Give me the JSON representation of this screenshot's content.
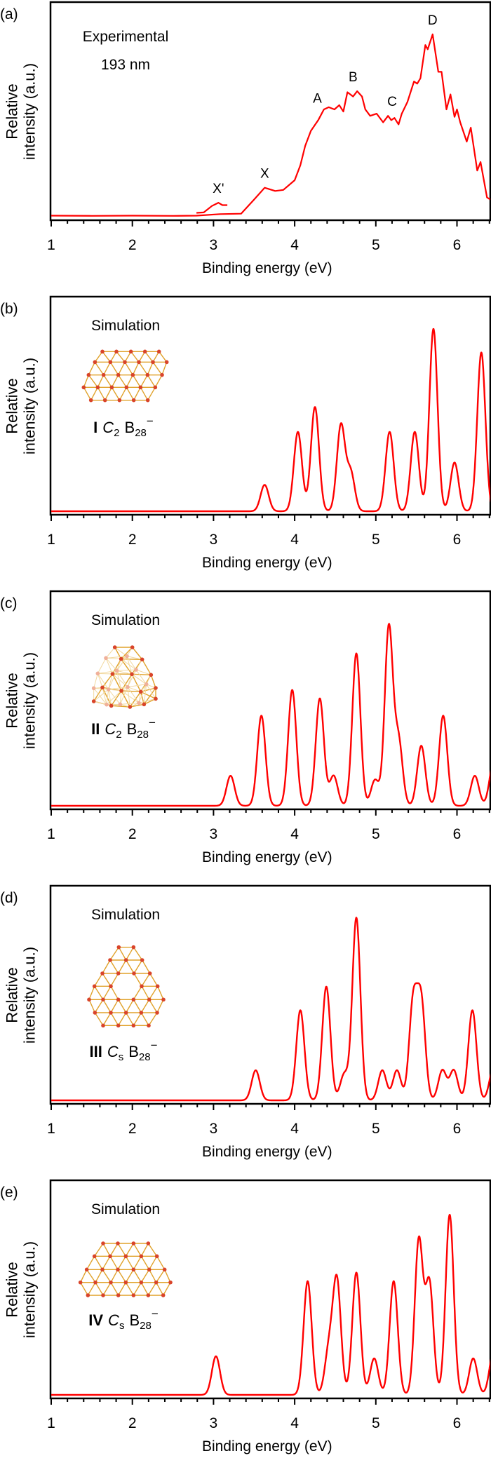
{
  "chart_data": [
    {
      "type": "line",
      "panel_letter": "(a)",
      "caption_lines": [
        "Experimental",
        "193 nm"
      ],
      "xlabel": "Binding energy (eV)",
      "ylabel_lines": [
        "Relative",
        "intensity (a.u.)"
      ],
      "xlim": [
        1,
        6.41
      ],
      "xticks": [
        1,
        2,
        3,
        4,
        5,
        6
      ],
      "yticks": [],
      "color": "#ff0000",
      "series": [
        {
          "x": [
            1.0,
            1.5,
            2.0,
            2.5,
            2.79,
            3.08,
            3.34,
            3.5,
            3.63,
            3.76,
            3.86,
            4.0,
            4.07,
            4.13,
            4.2,
            4.29,
            4.36,
            4.42,
            4.49,
            4.55,
            4.6,
            4.65,
            4.72,
            4.77,
            4.83,
            4.87,
            4.93,
            5.01,
            5.09,
            5.15,
            5.19,
            5.23,
            5.28,
            5.32,
            5.39,
            5.47,
            5.51,
            5.55,
            5.61,
            5.64,
            5.7,
            5.77,
            5.81,
            5.87,
            5.92,
            5.97,
            6.0,
            6.04,
            6.12,
            6.17,
            6.25,
            6.29,
            6.37,
            6.41
          ],
          "y": [
            0.005,
            0.004,
            0.005,
            0.004,
            0.005,
            0.012,
            0.014,
            0.08,
            0.135,
            0.12,
            0.125,
            0.17,
            0.24,
            0.33,
            0.4,
            0.45,
            0.5,
            0.51,
            0.5,
            0.52,
            0.49,
            0.58,
            0.56,
            0.585,
            0.56,
            0.5,
            0.47,
            0.48,
            0.44,
            0.47,
            0.45,
            0.46,
            0.43,
            0.48,
            0.535,
            0.63,
            0.62,
            0.645,
            0.8,
            0.78,
            0.85,
            0.675,
            0.675,
            0.5,
            0.57,
            0.465,
            0.5,
            0.44,
            0.35,
            0.415,
            0.215,
            0.255,
            0.09,
            0.08
          ]
        },
        {
          "x": [
            2.79,
            2.88,
            2.98,
            3.06,
            3.11,
            3.17
          ],
          "y": [
            0.018,
            0.02,
            0.05,
            0.065,
            0.054,
            0.054
          ]
        }
      ],
      "peak_labels": [
        {
          "text": "X'",
          "at": 3.06
        },
        {
          "text": "X",
          "at": 3.63
        },
        {
          "text": "A",
          "at": 4.28
        },
        {
          "text": "B",
          "at": 4.72
        },
        {
          "text": "C",
          "at": 5.2
        },
        {
          "text": "D",
          "at": 5.7
        }
      ]
    },
    {
      "type": "line",
      "panel_letter": "(b)",
      "inset_title": "Simulation",
      "isomer": {
        "numeral": "I",
        "point_group": "C",
        "point_group_sub": "2",
        "formula": "B",
        "formula_sub": "28",
        "charge": "−"
      },
      "xlabel": "Binding energy (eV)",
      "ylabel_lines": [
        "Relative",
        "intensity (a.u.)"
      ],
      "xlim": [
        1,
        6.41
      ],
      "xticks": [
        1,
        2,
        3,
        4,
        5,
        6
      ],
      "color": "#ff0000",
      "peaks": {
        "x": [
          3.63,
          4.04,
          4.25,
          4.57,
          4.69,
          5.17,
          5.48,
          5.71,
          5.97,
          6.3
        ],
        "y": [
          0.123,
          0.37,
          0.486,
          0.4,
          0.18,
          0.37,
          0.37,
          0.85,
          0.227,
          0.74
        ]
      }
    },
    {
      "type": "line",
      "panel_letter": "(c)",
      "inset_title": "Simulation",
      "isomer": {
        "numeral": "II",
        "point_group": "C",
        "point_group_sub": "2",
        "formula": "B",
        "formula_sub": "28",
        "charge": "−"
      },
      "xlabel": "Binding energy (eV)",
      "ylabel_lines": [
        "Relative",
        "intensity (a.u.)"
      ],
      "xlim": [
        1,
        6.41
      ],
      "xticks": [
        1,
        2,
        3,
        4,
        5,
        6
      ],
      "color": "#ff0000",
      "peaks": {
        "x": [
          3.21,
          3.59,
          3.97,
          4.31,
          4.48,
          4.76,
          4.99,
          5.16,
          5.28,
          5.56,
          5.83,
          6.22,
          6.45
        ],
        "y": [
          0.14,
          0.42,
          0.54,
          0.5,
          0.14,
          0.71,
          0.12,
          0.83,
          0.3,
          0.28,
          0.42,
          0.14,
          0.2
        ]
      }
    },
    {
      "type": "line",
      "panel_letter": "(d)",
      "inset_title": "Simulation",
      "isomer": {
        "numeral": "III",
        "point_group": "C",
        "point_group_sub": "s",
        "formula": "B",
        "formula_sub": "28",
        "charge": "−"
      },
      "xlabel": "Binding energy (eV)",
      "ylabel_lines": [
        "Relative",
        "intensity (a.u.)"
      ],
      "xlim": [
        1,
        6.41
      ],
      "xticks": [
        1,
        2,
        3,
        4,
        5,
        6
      ],
      "color": "#ff0000",
      "peaks": {
        "x": [
          3.52,
          4.07,
          4.39,
          4.61,
          4.76,
          5.08,
          5.26,
          5.46,
          5.56,
          5.82,
          5.96,
          6.19,
          6.45
        ],
        "y": [
          0.14,
          0.42,
          0.53,
          0.12,
          0.85,
          0.14,
          0.14,
          0.45,
          0.45,
          0.14,
          0.14,
          0.42,
          0.15
        ]
      }
    },
    {
      "type": "line",
      "panel_letter": "(e)",
      "inset_title": "Simulation",
      "isomer": {
        "numeral": "IV",
        "point_group": "C",
        "point_group_sub": "s",
        "formula": "B",
        "formula_sub": "28",
        "charge": "−"
      },
      "xlabel": "Binding energy (eV)",
      "ylabel_lines": [
        "Relative",
        "intensity (a.u.)"
      ],
      "xlim": [
        1,
        6.41
      ],
      "xticks": [
        1,
        2,
        3,
        4,
        5,
        6
      ],
      "color": "#ff0000",
      "peaks": {
        "x": [
          3.03,
          4.16,
          4.42,
          4.52,
          4.76,
          4.98,
          5.22,
          5.53,
          5.66,
          5.91,
          6.2,
          6.45
        ],
        "y": [
          0.18,
          0.53,
          0.2,
          0.53,
          0.57,
          0.17,
          0.53,
          0.72,
          0.52,
          0.84,
          0.17,
          0.2
        ]
      }
    }
  ]
}
